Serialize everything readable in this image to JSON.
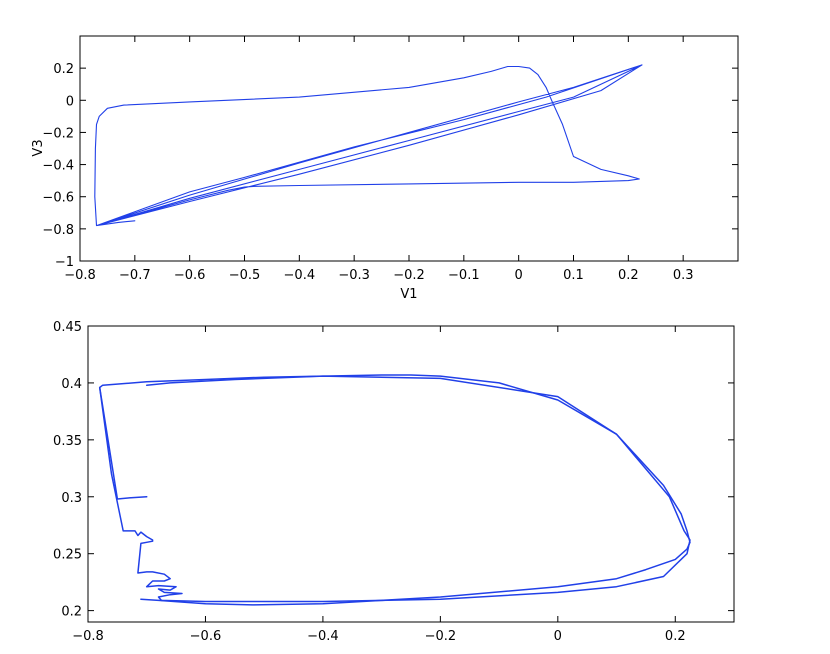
{
  "chart_data": [
    {
      "type": "line",
      "title": "",
      "xlabel": "V1",
      "ylabel": "V3",
      "xlim": [
        -0.8,
        0.4
      ],
      "ylim": [
        -1.0,
        0.4
      ],
      "xticks": [
        -0.8,
        -0.7,
        -0.6,
        -0.5,
        -0.4,
        -0.3,
        -0.2,
        -0.1,
        0,
        0.1,
        0.2,
        0.3
      ],
      "xtick_labels": [
        "−0.8",
        "−0.7",
        "−0.6",
        "−0.5",
        "−0.4",
        "−0.3",
        "−0.2",
        "−0.1",
        "0",
        "0.1",
        "0.2",
        "0.3"
      ],
      "yticks": [
        -1.0,
        -0.8,
        -0.6,
        -0.4,
        -0.2,
        0,
        0.2
      ],
      "ytick_labels": [
        "−1",
        "−0.8",
        "−0.6",
        "−0.4",
        "−0.2",
        "0",
        "0.2"
      ],
      "grid": false,
      "color": "#2140e8",
      "series": [
        {
          "x": [
            -0.7,
            -0.73,
            -0.77,
            -0.6,
            -0.4,
            -0.2,
            0.0,
            0.15,
            0.225,
            0.1,
            0.0,
            -0.2,
            -0.4,
            -0.6,
            -0.77,
            -0.6,
            -0.4,
            -0.2,
            0.0,
            0.1,
            0.225,
            0.05,
            -0.1,
            -0.3,
            -0.5,
            -0.6,
            -0.77,
            -0.773,
            -0.772,
            -0.77,
            -0.765,
            -0.75,
            -0.72,
            -0.6,
            -0.4,
            -0.2,
            -0.1,
            -0.05,
            -0.02,
            0.0,
            0.02,
            0.035,
            0.05,
            0.06,
            0.08,
            0.1,
            0.15,
            0.2,
            0.22,
            0.2,
            0.1,
            0.0,
            -0.2,
            -0.4,
            -0.48,
            -0.5,
            -0.53,
            -0.6,
            -0.77
          ],
          "y": [
            -0.75,
            -0.76,
            -0.78,
            -0.63,
            -0.46,
            -0.28,
            -0.09,
            0.06,
            0.22,
            0.08,
            -0.01,
            -0.2,
            -0.39,
            -0.59,
            -0.78,
            -0.61,
            -0.43,
            -0.25,
            -0.07,
            0.02,
            0.22,
            0.02,
            -0.12,
            -0.29,
            -0.48,
            -0.57,
            -0.78,
            -0.6,
            -0.3,
            -0.15,
            -0.1,
            -0.05,
            -0.03,
            -0.01,
            0.02,
            0.08,
            0.14,
            0.18,
            0.21,
            0.21,
            0.2,
            0.16,
            0.08,
            0.0,
            -0.15,
            -0.35,
            -0.43,
            -0.47,
            -0.49,
            -0.5,
            -0.51,
            -0.51,
            -0.52,
            -0.53,
            -0.535,
            -0.54,
            -0.56,
            -0.62,
            -0.78
          ]
        }
      ]
    },
    {
      "type": "line",
      "title": "",
      "xlabel": "",
      "ylabel": "",
      "xlim": [
        -0.8,
        0.3
      ],
      "ylim": [
        0.19,
        0.45
      ],
      "xticks": [
        -0.8,
        -0.6,
        -0.4,
        -0.2,
        0,
        0.2
      ],
      "xtick_labels": [
        "−0.8",
        "−0.6",
        "−0.4",
        "−0.2",
        "0",
        "0.2"
      ],
      "yticks": [
        0.2,
        0.25,
        0.3,
        0.35,
        0.4,
        0.45
      ],
      "ytick_labels": [
        "0.2",
        "0.25",
        "0.3",
        "0.35",
        "0.4",
        "0.45"
      ],
      "grid": false,
      "color": "#2140e8",
      "series": [
        {
          "x": [
            -0.7,
            -0.73,
            -0.75,
            -0.78,
            -0.775,
            -0.7,
            -0.6,
            -0.5,
            -0.4,
            -0.3,
            -0.25,
            -0.2,
            -0.1,
            0.0,
            0.1,
            0.18,
            0.21,
            0.22,
            0.225,
            0.22,
            0.2,
            0.15,
            0.1,
            0.0,
            -0.2,
            -0.4,
            -0.52,
            -0.6,
            -0.68,
            -0.71
          ],
          "y": [
            0.3,
            0.299,
            0.298,
            0.396,
            0.398,
            0.401,
            0.403,
            0.405,
            0.406,
            0.407,
            0.407,
            0.406,
            0.4,
            0.385,
            0.355,
            0.31,
            0.285,
            0.27,
            0.26,
            0.254,
            0.245,
            0.236,
            0.228,
            0.221,
            0.212,
            0.206,
            0.205,
            0.206,
            0.209,
            0.21
          ]
        },
        {
          "x": [
            -0.78,
            -0.76,
            -0.74,
            -0.72,
            -0.715,
            -0.71,
            -0.7,
            -0.69,
            -0.69,
            -0.7,
            -0.71,
            -0.715,
            -0.7,
            -0.69,
            -0.67,
            -0.66,
            -0.67,
            -0.69,
            -0.7,
            -0.68,
            -0.65,
            -0.66,
            -0.68,
            -0.67,
            -0.64,
            -0.66,
            -0.68,
            -0.675,
            -0.6,
            -0.5,
            -0.4,
            -0.2,
            0.0,
            0.1,
            0.18,
            0.22,
            0.225,
            0.215,
            0.19,
            0.1,
            0.0,
            -0.2,
            -0.4,
            -0.55,
            -0.66,
            -0.7
          ],
          "y": [
            0.396,
            0.32,
            0.27,
            0.27,
            0.266,
            0.269,
            0.265,
            0.262,
            0.261,
            0.26,
            0.259,
            0.233,
            0.234,
            0.234,
            0.232,
            0.228,
            0.226,
            0.226,
            0.221,
            0.222,
            0.221,
            0.218,
            0.219,
            0.216,
            0.215,
            0.214,
            0.212,
            0.209,
            0.208,
            0.208,
            0.208,
            0.21,
            0.216,
            0.221,
            0.23,
            0.25,
            0.262,
            0.27,
            0.3,
            0.355,
            0.388,
            0.404,
            0.406,
            0.403,
            0.4,
            0.398
          ]
        }
      ]
    }
  ]
}
